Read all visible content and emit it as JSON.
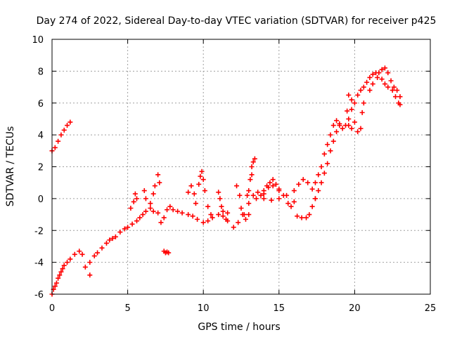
{
  "chart_data": {
    "type": "scatter",
    "title": "Day 274 of 2022, Sidereal Day-to-day VTEC variation (SDTVAR) for receiver p425",
    "xlabel": "GPS time / hours",
    "ylabel": "SDTVAR / TECUs",
    "xlim": [
      0,
      25
    ],
    "ylim": [
      -6,
      10
    ],
    "xticks": [
      "0",
      "5",
      "10",
      "15",
      "20",
      "25"
    ],
    "yticks": [
      "-6",
      "-4",
      "-2",
      "0",
      "2",
      "4",
      "6",
      "8",
      "10"
    ],
    "grid": true,
    "marker": "+",
    "color": "#ff0000",
    "series": [
      {
        "name": "SDTVAR",
        "points": [
          [
            0.0,
            -6.0
          ],
          [
            0.1,
            -5.7
          ],
          [
            0.2,
            -5.5
          ],
          [
            0.3,
            -5.3
          ],
          [
            0.4,
            -5.0
          ],
          [
            0.5,
            -4.8
          ],
          [
            0.6,
            -4.6
          ],
          [
            0.7,
            -4.4
          ],
          [
            0.8,
            -4.2
          ],
          [
            1.0,
            -4.0
          ],
          [
            1.2,
            -3.8
          ],
          [
            1.5,
            -3.5
          ],
          [
            1.8,
            -3.3
          ],
          [
            2.0,
            -3.5
          ],
          [
            2.2,
            -4.3
          ],
          [
            2.5,
            -4.0
          ],
          [
            2.5,
            -4.8
          ],
          [
            2.8,
            -3.6
          ],
          [
            3.0,
            -3.4
          ],
          [
            3.3,
            -3.1
          ],
          [
            3.6,
            -2.8
          ],
          [
            3.8,
            -2.6
          ],
          [
            4.0,
            -2.5
          ],
          [
            4.2,
            -2.4
          ],
          [
            4.5,
            -2.1
          ],
          [
            4.8,
            -1.9
          ],
          [
            5.0,
            -1.8
          ],
          [
            5.3,
            -1.6
          ],
          [
            5.6,
            -1.4
          ],
          [
            5.8,
            -1.2
          ],
          [
            6.0,
            -1.0
          ],
          [
            6.2,
            -0.8
          ],
          [
            6.5,
            -0.6
          ],
          [
            6.7,
            -0.8
          ],
          [
            7.0,
            -0.9
          ],
          [
            7.2,
            -1.5
          ],
          [
            7.4,
            -1.2
          ],
          [
            7.6,
            -0.7
          ],
          [
            7.8,
            -0.5
          ],
          [
            8.0,
            -0.7
          ],
          [
            8.3,
            -0.8
          ],
          [
            8.6,
            -0.9
          ],
          [
            9.0,
            -1.0
          ],
          [
            9.3,
            -1.1
          ],
          [
            9.6,
            -1.3
          ],
          [
            10.0,
            -1.5
          ],
          [
            10.3,
            -1.4
          ],
          [
            10.6,
            -1.2
          ],
          [
            11.0,
            -1.0
          ],
          [
            11.3,
            -1.1
          ],
          [
            11.6,
            -1.4
          ],
          [
            12.0,
            -1.8
          ],
          [
            12.3,
            -1.5
          ],
          [
            12.6,
            -1.0
          ],
          [
            13.0,
            -0.3
          ],
          [
            13.3,
            0.2
          ],
          [
            13.6,
            0.4
          ],
          [
            14.0,
            0.5
          ],
          [
            14.3,
            0.7
          ],
          [
            14.6,
            0.8
          ],
          [
            15.0,
            0.6
          ],
          [
            0.0,
            3.0
          ],
          [
            0.2,
            3.2
          ],
          [
            0.4,
            3.6
          ],
          [
            0.6,
            4.0
          ],
          [
            0.8,
            4.3
          ],
          [
            1.0,
            4.6
          ],
          [
            1.2,
            4.8
          ],
          [
            5.2,
            -0.6
          ],
          [
            5.4,
            -0.2
          ],
          [
            5.5,
            0.3
          ],
          [
            5.6,
            0.0
          ],
          [
            6.1,
            0.5
          ],
          [
            6.2,
            0.0
          ],
          [
            6.5,
            -0.3
          ],
          [
            6.8,
            0.8
          ],
          [
            7.0,
            1.5
          ],
          [
            7.1,
            1.0
          ],
          [
            6.7,
            0.3
          ],
          [
            7.4,
            -3.3
          ],
          [
            7.5,
            -3.4
          ],
          [
            7.6,
            -3.35
          ],
          [
            7.7,
            -3.4
          ],
          [
            9.0,
            0.4
          ],
          [
            9.2,
            0.8
          ],
          [
            9.4,
            0.3
          ],
          [
            9.5,
            -0.3
          ],
          [
            9.7,
            0.9
          ],
          [
            9.8,
            1.4
          ],
          [
            9.9,
            1.7
          ],
          [
            10.0,
            1.2
          ],
          [
            10.1,
            0.5
          ],
          [
            10.3,
            -0.5
          ],
          [
            10.5,
            -1.0
          ],
          [
            11.0,
            0.4
          ],
          [
            11.1,
            0.0
          ],
          [
            11.2,
            -0.5
          ],
          [
            11.3,
            -0.8
          ],
          [
            11.5,
            -1.3
          ],
          [
            11.6,
            -0.9
          ],
          [
            12.2,
            0.8
          ],
          [
            12.4,
            0.2
          ],
          [
            12.5,
            -0.6
          ],
          [
            12.7,
            -1.0
          ],
          [
            12.9,
            0.2
          ],
          [
            13.0,
            0.5
          ],
          [
            13.1,
            1.2
          ],
          [
            13.2,
            2.0
          ],
          [
            13.3,
            2.3
          ],
          [
            13.4,
            2.5
          ],
          [
            13.2,
            1.5
          ],
          [
            13.0,
            -1.0
          ],
          [
            12.8,
            -1.3
          ],
          [
            13.5,
            0.0
          ],
          [
            13.8,
            0.2
          ],
          [
            14.0,
            0.3
          ],
          [
            14.2,
            0.8
          ],
          [
            14.4,
            1.0
          ],
          [
            14.6,
            1.2
          ],
          [
            14.8,
            0.9
          ],
          [
            15.0,
            0.5
          ],
          [
            15.3,
            0.2
          ],
          [
            15.6,
            -0.3
          ],
          [
            15.8,
            -0.5
          ],
          [
            16.0,
            -0.2
          ],
          [
            14.0,
            0.0
          ],
          [
            14.5,
            -0.1
          ],
          [
            15.0,
            0.0
          ],
          [
            15.5,
            0.2
          ],
          [
            16.0,
            0.5
          ],
          [
            16.3,
            0.9
          ],
          [
            16.6,
            1.2
          ],
          [
            16.9,
            1.0
          ],
          [
            17.2,
            0.6
          ],
          [
            17.4,
            0.0
          ],
          [
            16.2,
            -1.1
          ],
          [
            16.5,
            -1.2
          ],
          [
            16.8,
            -1.2
          ],
          [
            17.0,
            -1.0
          ],
          [
            17.2,
            -0.5
          ],
          [
            17.4,
            0.0
          ],
          [
            17.6,
            0.5
          ],
          [
            17.8,
            1.0
          ],
          [
            18.0,
            1.6
          ],
          [
            18.2,
            2.2
          ],
          [
            18.4,
            3.0
          ],
          [
            18.6,
            3.6
          ],
          [
            18.8,
            4.2
          ],
          [
            19.0,
            4.6
          ],
          [
            17.4,
            1.0
          ],
          [
            17.6,
            1.5
          ],
          [
            17.8,
            2.0
          ],
          [
            18.0,
            2.8
          ],
          [
            18.2,
            3.4
          ],
          [
            18.4,
            4.0
          ],
          [
            18.6,
            4.6
          ],
          [
            18.8,
            4.9
          ],
          [
            19.0,
            4.7
          ],
          [
            19.2,
            4.4
          ],
          [
            19.4,
            4.6
          ],
          [
            19.6,
            5.0
          ],
          [
            19.8,
            5.6
          ],
          [
            20.0,
            6.0
          ],
          [
            20.2,
            6.5
          ],
          [
            20.4,
            6.8
          ],
          [
            20.6,
            7.0
          ],
          [
            20.8,
            7.3
          ],
          [
            21.0,
            7.6
          ],
          [
            21.2,
            7.8
          ],
          [
            21.4,
            7.9
          ],
          [
            21.6,
            7.9
          ],
          [
            21.8,
            8.1
          ],
          [
            22.0,
            8.2
          ],
          [
            22.2,
            7.9
          ],
          [
            22.4,
            7.4
          ],
          [
            22.6,
            7.0
          ],
          [
            22.8,
            6.8
          ],
          [
            23.0,
            6.4
          ],
          [
            19.6,
            4.6
          ],
          [
            19.8,
            4.4
          ],
          [
            20.0,
            4.8
          ],
          [
            20.2,
            4.2
          ],
          [
            20.4,
            4.4
          ],
          [
            20.5,
            5.4
          ],
          [
            20.6,
            6.0
          ],
          [
            21.0,
            6.8
          ],
          [
            21.2,
            7.2
          ],
          [
            21.5,
            7.6
          ],
          [
            21.8,
            7.5
          ],
          [
            22.0,
            7.2
          ],
          [
            22.2,
            7.0
          ],
          [
            22.5,
            6.8
          ],
          [
            22.7,
            6.4
          ],
          [
            22.9,
            6.0
          ],
          [
            23.0,
            5.9
          ],
          [
            19.5,
            5.5
          ],
          [
            19.6,
            6.5
          ],
          [
            19.8,
            6.2
          ]
        ]
      }
    ]
  }
}
